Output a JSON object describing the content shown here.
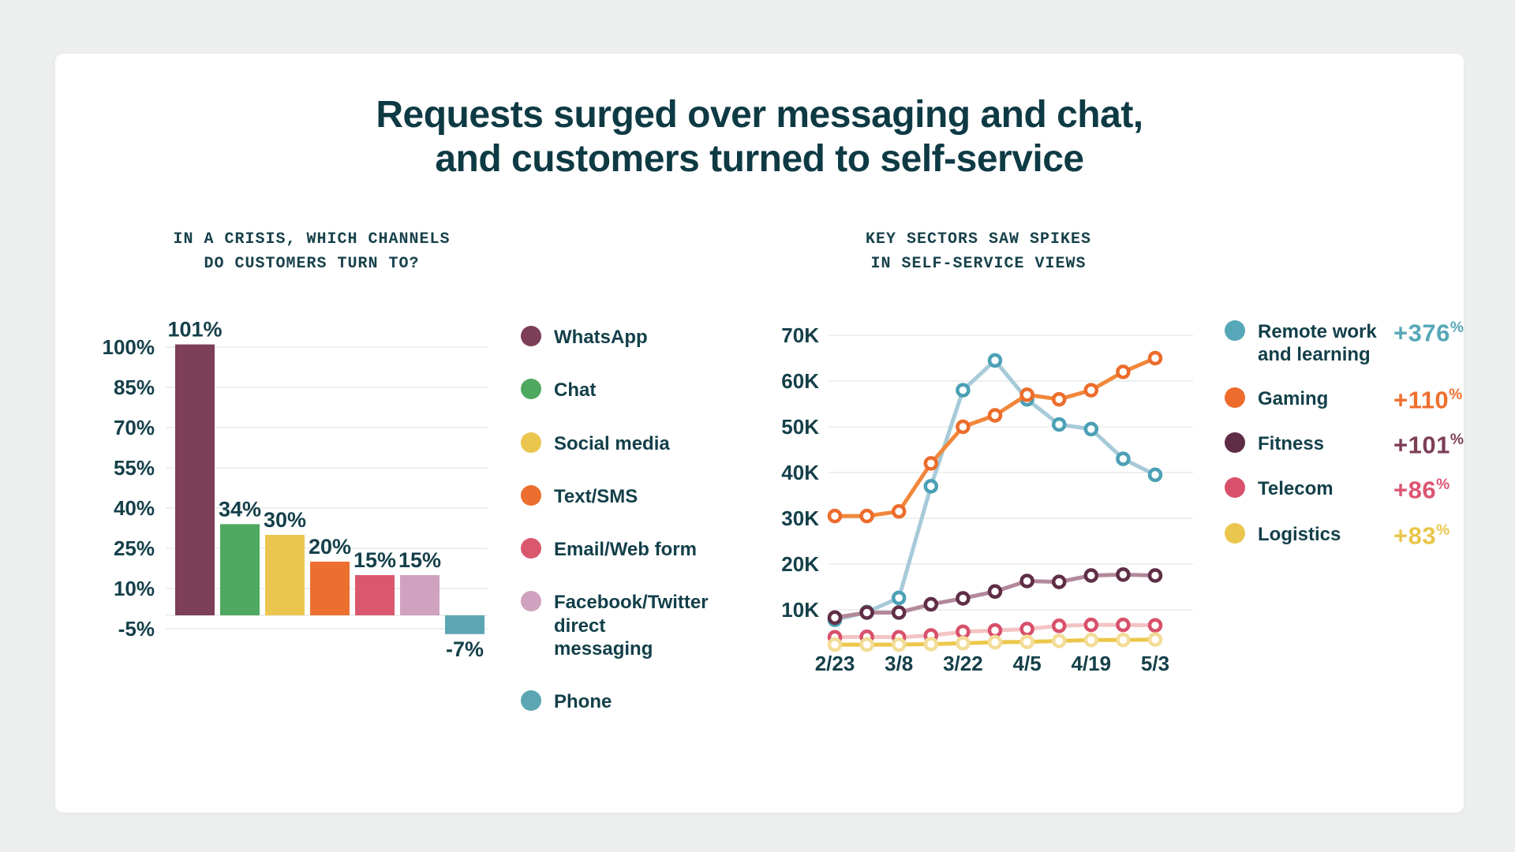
{
  "header": {
    "title_lines": [
      "Requests surged over messaging and chat,",
      "and customers turned to self-service"
    ]
  },
  "colors": {
    "background": "#ecefee",
    "card": "#ffffff",
    "text_dark_teal": "#0e3a44",
    "grid": "#e8eaea"
  },
  "chart_data": [
    {
      "type": "bar",
      "title_lines": [
        "IN A CRISIS, WHICH CHANNELS",
        "DO CUSTOMERS TURN TO?"
      ],
      "categories": [
        "WhatsApp",
        "Chat",
        "Social media",
        "Text/SMS",
        "Email/Web form",
        "Facebook/Twitter direct messaging",
        "Phone"
      ],
      "values": [
        101,
        34,
        30,
        20,
        15,
        15,
        -7
      ],
      "value_labels": [
        "101%",
        "34%",
        "30%",
        "20%",
        "15%",
        "15%",
        "-7%"
      ],
      "colors": [
        "#7d3e58",
        "#4ea85f",
        "#eac64f",
        "#ec6f2f",
        "#d9586d",
        "#cfa3bf",
        "#5ca6b4"
      ],
      "y_tick_values": [
        100,
        85,
        70,
        55,
        40,
        25,
        10,
        -5
      ],
      "y_tick_labels": [
        "100%",
        "85%",
        "70%",
        "55%",
        "40%",
        "25%",
        "10%",
        "-5%"
      ],
      "ylim": [
        -12,
        112
      ],
      "grid": true,
      "legend_position": "right"
    },
    {
      "type": "line",
      "title_lines": [
        "KEY SECTORS SAW SPIKES",
        "IN SELF-SERVICE VIEWS"
      ],
      "x_tick_labels": [
        "2/23",
        "3/8",
        "3/22",
        "4/5",
        "4/19",
        "5/3"
      ],
      "x_tick_indices": [
        0,
        2,
        4,
        6,
        8,
        10
      ],
      "y_tick_values": [
        70,
        60,
        50,
        40,
        30,
        20,
        10
      ],
      "y_tick_labels": [
        "70K",
        "60K",
        "50K",
        "40K",
        "30K",
        "20K",
        "10K"
      ],
      "y_unit": "K",
      "ylim": [
        0,
        72
      ],
      "grid": true,
      "legend_position": "right",
      "draw_order": [
        3,
        4,
        0,
        2,
        1
      ],
      "series": [
        {
          "name": "Remote work and learning",
          "change": "+376%",
          "values": [
            7.8,
            9.5,
            12.6,
            37,
            58,
            64.5,
            56,
            50.5,
            49.5,
            43,
            39.5
          ],
          "line_color": "#a7cad8",
          "dot_color": "#4ba0b5",
          "legend_color": "#56a7b8",
          "change_color": "#56a7b8"
        },
        {
          "name": "Gaming",
          "change": "+110%",
          "values": [
            30.5,
            30.5,
            31.5,
            42,
            50,
            52.5,
            57,
            56,
            58,
            62,
            65
          ],
          "line_color": "#f0873b",
          "dot_color": "#ec6c2c",
          "legend_color": "#ed6c2d",
          "change_color": "#f06f2d"
        },
        {
          "name": "Fitness",
          "change": "+101%",
          "values": [
            8.3,
            9.4,
            9.4,
            11.2,
            12.5,
            14,
            16.3,
            16.1,
            17.5,
            17.7,
            17.5
          ],
          "line_color": "#b3889b",
          "dot_color": "#5f2e46",
          "legend_color": "#5f2e46",
          "change_color": "#7d3e58"
        },
        {
          "name": "Telecom",
          "change": "+86%",
          "values": [
            4.0,
            4.1,
            4.0,
            4.4,
            5.2,
            5.5,
            5.8,
            6.5,
            6.7,
            6.7,
            6.6
          ],
          "line_color": "#f4c3c4",
          "dot_color": "#d8506b",
          "legend_color": "#d8506b",
          "change_color": "#dc5571"
        },
        {
          "name": "Logistics",
          "change": "+83%",
          "values": [
            2.4,
            2.4,
            2.4,
            2.5,
            2.7,
            2.9,
            3.0,
            3.2,
            3.4,
            3.4,
            3.5
          ],
          "line_color": "#ecc74b",
          "dot_color": "#f3dc96",
          "legend_color": "#eac64e",
          "change_color": "#e9c64b"
        }
      ]
    }
  ]
}
